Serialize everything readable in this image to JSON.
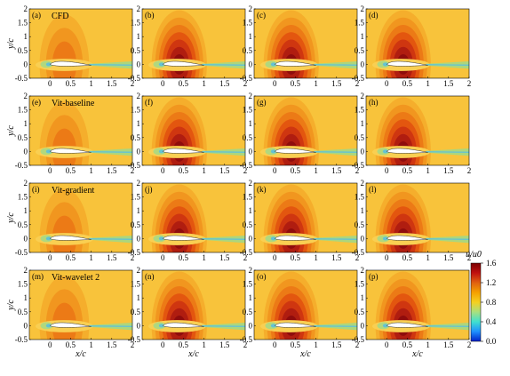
{
  "chart_data": {
    "type": "heatmap",
    "description_field": "u/u0",
    "rows": [
      {
        "method_label": "CFD",
        "panels": [
          "(a)",
          "(b)",
          "(c)",
          "(d)"
        ]
      },
      {
        "method_label": "Vit-baseline",
        "panels": [
          "(e)",
          "(f)",
          "(g)",
          "(h)"
        ]
      },
      {
        "method_label": "Vit-gradient",
        "panels": [
          "(i)",
          "(j)",
          "(k)",
          "(l)"
        ]
      },
      {
        "method_label": "Vit-wavelet 2",
        "panels": [
          "(m)",
          "(n)",
          "(o)",
          "(p)"
        ]
      }
    ],
    "panel_peak": [
      1.05,
      1.55,
      1.55,
      1.6
    ],
    "x_ticks": [
      "0",
      "0.5",
      "1",
      "1.5",
      "2"
    ],
    "x_ticks_col0": [
      "0",
      "0.5",
      "1",
      "1.5",
      "2"
    ],
    "y_ticks": [
      "2",
      "1.5",
      "1",
      "0.5",
      "0",
      "-0.5"
    ],
    "xlim": [
      -0.5,
      2
    ],
    "ylim": [
      -0.5,
      2
    ],
    "xlabel": "x/c",
    "ylabel": "y/c",
    "colorbar": {
      "title": "u/u0",
      "range": [
        0,
        1.6
      ],
      "ticks": [
        "1.6",
        "1.2",
        "0.8",
        "0.4",
        "0.0"
      ],
      "colors": [
        "#0020c8",
        "#1e90ff",
        "#40e0d0",
        "#a8e080",
        "#f5d020",
        "#f5a000",
        "#e06010",
        "#c01010",
        "#7a0000"
      ]
    },
    "palette": {
      "background": "#f8c33b",
      "levels": [
        "#f5ae2c",
        "#f1961f",
        "#ec7a16",
        "#e3560f",
        "#cf3610",
        "#b01d10",
        "#8f0c0c"
      ],
      "wake": "#9fd98a",
      "wake_edge": "#5bc0de",
      "airfoil": "#ffffff"
    }
  }
}
